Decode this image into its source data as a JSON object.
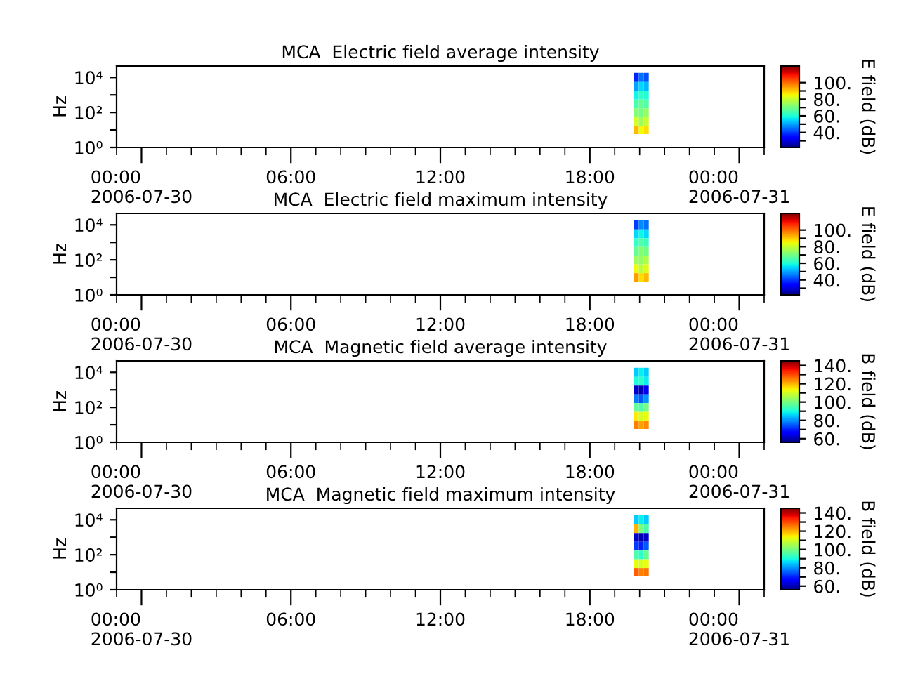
{
  "chart_data": [
    {
      "type": "heatmap",
      "title": "MCA  Electric field average intensity",
      "ylabel": "Hz",
      "clabel": "E field (dB)",
      "log": "y",
      "x": [
        "2006-07-30T19:52",
        "2006-07-30T20:04",
        "2006-07-30T20:16"
      ],
      "y": [
        10000,
        3000,
        1000,
        300,
        100,
        30,
        10
      ],
      "cells": [
        [
          38,
          45,
          42
        ],
        [
          50,
          55,
          52
        ],
        [
          58,
          62,
          60
        ],
        [
          65,
          68,
          66
        ],
        [
          72,
          70,
          74
        ],
        [
          82,
          75,
          80
        ],
        [
          92,
          85,
          88
        ]
      ],
      "clim": [
        22,
        120
      ],
      "cticks": [
        {
          "value": 30,
          "label": null
        },
        {
          "value": 40,
          "label": "40."
        },
        {
          "value": 50,
          "label": null
        },
        {
          "value": 60,
          "label": "60."
        },
        {
          "value": 70,
          "label": null
        },
        {
          "value": 80,
          "label": "80."
        },
        {
          "value": 90,
          "label": null
        },
        {
          "value": 100,
          "label": "100."
        }
      ],
      "xlim": [
        "2006-07-29T23:00",
        "2006-07-31T01:00"
      ],
      "xticks": [
        {
          "value": "2006-07-30T00:00",
          "label": "00:00\n2006-07-30"
        },
        {
          "value": "2006-07-30T06:00",
          "label": "06:00"
        },
        {
          "value": "2006-07-30T12:00",
          "label": "12:00"
        },
        {
          "value": "2006-07-30T18:00",
          "label": "18:00"
        },
        {
          "value": "2006-07-31T00:00",
          "label": "00:00\n2006-07-31"
        }
      ],
      "ylim": [
        1,
        45000
      ],
      "yticks": [
        {
          "value": 1,
          "label": "10⁰"
        },
        {
          "value": 10,
          "label": null
        },
        {
          "value": 100,
          "label": "10²"
        },
        {
          "value": 1000,
          "label": null
        },
        {
          "value": 10000,
          "label": "10⁴"
        }
      ]
    },
    {
      "type": "heatmap",
      "title": "MCA  Electric field maximum intensity",
      "ylabel": "Hz",
      "clabel": "E field (dB)",
      "log": "y",
      "x": [
        "2006-07-30T19:52",
        "2006-07-30T20:04",
        "2006-07-30T20:16"
      ],
      "y": [
        10000,
        3000,
        1000,
        300,
        100,
        30,
        10
      ],
      "cells": [
        [
          40,
          48,
          45
        ],
        [
          55,
          58,
          55
        ],
        [
          62,
          66,
          63
        ],
        [
          68,
          72,
          70
        ],
        [
          75,
          74,
          77
        ],
        [
          85,
          78,
          83
        ],
        [
          95,
          88,
          92
        ]
      ],
      "clim": [
        22,
        120
      ],
      "cticks": [
        {
          "value": 30,
          "label": null
        },
        {
          "value": 40,
          "label": "40."
        },
        {
          "value": 50,
          "label": null
        },
        {
          "value": 60,
          "label": "60."
        },
        {
          "value": 70,
          "label": null
        },
        {
          "value": 80,
          "label": "80."
        },
        {
          "value": 90,
          "label": null
        },
        {
          "value": 100,
          "label": "100."
        }
      ],
      "xlim": [
        "2006-07-29T23:00",
        "2006-07-31T01:00"
      ],
      "xticks": [
        {
          "value": "2006-07-30T00:00",
          "label": "00:00\n2006-07-30"
        },
        {
          "value": "2006-07-30T06:00",
          "label": "06:00"
        },
        {
          "value": "2006-07-30T12:00",
          "label": "12:00"
        },
        {
          "value": "2006-07-30T18:00",
          "label": "18:00"
        },
        {
          "value": "2006-07-31T00:00",
          "label": "00:00\n2006-07-31"
        }
      ],
      "ylim": [
        1,
        45000
      ],
      "yticks": [
        {
          "value": 1,
          "label": "10⁰"
        },
        {
          "value": 10,
          "label": null
        },
        {
          "value": 100,
          "label": "10²"
        },
        {
          "value": 1000,
          "label": null
        },
        {
          "value": 10000,
          "label": "10⁴"
        }
      ]
    },
    {
      "type": "heatmap",
      "title": "MCA  Magnetic field average intensity",
      "ylabel": "Hz",
      "clabel": "B field (dB)",
      "log": "y",
      "x": [
        "2006-07-30T19:52",
        "2006-07-30T20:04",
        "2006-07-30T20:16"
      ],
      "y": [
        10000,
        3000,
        1000,
        300,
        100,
        30,
        10
      ],
      "cells": [
        [
          85,
          88,
          85
        ],
        [
          90,
          92,
          88
        ],
        [
          62,
          60,
          65
        ],
        [
          78,
          75,
          80
        ],
        [
          98,
          95,
          100
        ],
        [
          115,
          110,
          112
        ],
        [
          125,
          122,
          124
        ]
      ],
      "clim": [
        56,
        145
      ],
      "cticks": [
        {
          "value": 60,
          "label": "60."
        },
        {
          "value": 70,
          "label": null
        },
        {
          "value": 80,
          "label": "80."
        },
        {
          "value": 90,
          "label": null
        },
        {
          "value": 100,
          "label": "100."
        },
        {
          "value": 110,
          "label": null
        },
        {
          "value": 120,
          "label": "120."
        },
        {
          "value": 130,
          "label": null
        },
        {
          "value": 140,
          "label": "140."
        }
      ],
      "xlim": [
        "2006-07-29T23:00",
        "2006-07-31T01:00"
      ],
      "xticks": [
        {
          "value": "2006-07-30T00:00",
          "label": "00:00\n2006-07-30"
        },
        {
          "value": "2006-07-30T06:00",
          "label": "06:00"
        },
        {
          "value": "2006-07-30T12:00",
          "label": "12:00"
        },
        {
          "value": "2006-07-30T18:00",
          "label": "18:00"
        },
        {
          "value": "2006-07-31T00:00",
          "label": "00:00\n2006-07-31"
        }
      ],
      "ylim": [
        1,
        45000
      ],
      "yticks": [
        {
          "value": 1,
          "label": "10⁰"
        },
        {
          "value": 10,
          "label": null
        },
        {
          "value": 100,
          "label": "10²"
        },
        {
          "value": 1000,
          "label": null
        },
        {
          "value": 10000,
          "label": "10⁴"
        }
      ]
    },
    {
      "type": "heatmap",
      "title": "MCA  Magnetic field maximum intensity",
      "ylabel": "Hz",
      "clabel": "B field (dB)",
      "log": "y",
      "x": [
        "2006-07-30T19:52",
        "2006-07-30T20:04",
        "2006-07-30T20:16"
      ],
      "y": [
        10000,
        3000,
        1000,
        300,
        100,
        30,
        10
      ],
      "cells": [
        [
          85,
          88,
          85
        ],
        [
          120,
          100,
          95
        ],
        [
          62,
          60,
          62
        ],
        [
          72,
          70,
          75
        ],
        [
          95,
          92,
          98
        ],
        [
          112,
          110,
          112
        ],
        [
          128,
          125,
          126
        ]
      ],
      "clim": [
        56,
        145
      ],
      "cticks": [
        {
          "value": 60,
          "label": "60."
        },
        {
          "value": 70,
          "label": null
        },
        {
          "value": 80,
          "label": "80."
        },
        {
          "value": 90,
          "label": null
        },
        {
          "value": 100,
          "label": "100."
        },
        {
          "value": 110,
          "label": null
        },
        {
          "value": 120,
          "label": "120."
        },
        {
          "value": 130,
          "label": null
        },
        {
          "value": 140,
          "label": "140."
        }
      ],
      "xlim": [
        "2006-07-29T23:00",
        "2006-07-31T01:00"
      ],
      "xticks": [
        {
          "value": "2006-07-30T00:00",
          "label": "00:00\n2006-07-30"
        },
        {
          "value": "2006-07-30T06:00",
          "label": "06:00"
        },
        {
          "value": "2006-07-30T12:00",
          "label": "12:00"
        },
        {
          "value": "2006-07-30T18:00",
          "label": "18:00"
        },
        {
          "value": "2006-07-31T00:00",
          "label": "00:00\n2006-07-31"
        }
      ],
      "ylim": [
        1,
        45000
      ],
      "yticks": [
        {
          "value": 1,
          "label": "10⁰"
        },
        {
          "value": 10,
          "label": null
        },
        {
          "value": 100,
          "label": "10²"
        },
        {
          "value": 1000,
          "label": null
        },
        {
          "value": 10000,
          "label": "10⁴"
        }
      ]
    }
  ]
}
